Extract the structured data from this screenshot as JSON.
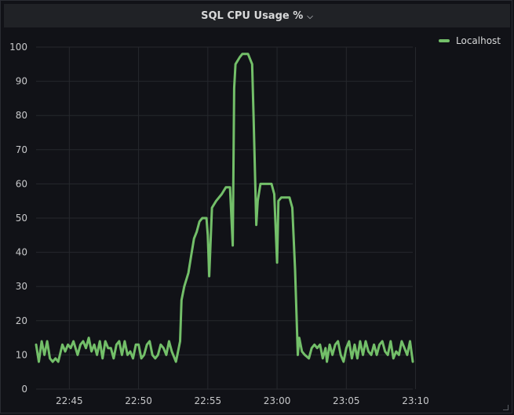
{
  "panel": {
    "title": "SQL CPU Usage %",
    "menu_icon": "chevron-down-icon"
  },
  "colors": {
    "background": "#111217",
    "grid": "#26282d",
    "series": "#73bf69",
    "text": "#c7c8ca"
  },
  "legend": {
    "items": [
      {
        "label": "Localhost",
        "color": "#73bf69"
      }
    ],
    "placement": "right"
  },
  "chart_data": {
    "type": "line",
    "x_unit": "minutes after 22:40",
    "xlim": [
      22.6,
      49.8
    ],
    "ylim": [
      0,
      100
    ],
    "x_ticks": [
      {
        "label": "22:45",
        "value": 25
      },
      {
        "label": "22:50",
        "value": 30
      },
      {
        "label": "22:55",
        "value": 35
      },
      {
        "label": "23:00",
        "value": 40
      },
      {
        "label": "23:05",
        "value": 45
      },
      {
        "label": "23:10",
        "value": 50
      }
    ],
    "y_ticks": [
      0,
      10,
      20,
      30,
      40,
      50,
      60,
      70,
      80,
      90,
      100
    ],
    "grid": true,
    "series": [
      {
        "name": "Localhost",
        "points": [
          [
            22.6,
            13
          ],
          [
            22.8,
            8
          ],
          [
            23.0,
            14
          ],
          [
            23.2,
            10
          ],
          [
            23.4,
            14
          ],
          [
            23.6,
            9
          ],
          [
            23.8,
            8
          ],
          [
            24.0,
            9
          ],
          [
            24.2,
            8
          ],
          [
            24.5,
            13
          ],
          [
            24.7,
            11
          ],
          [
            24.9,
            13
          ],
          [
            25.1,
            12
          ],
          [
            25.3,
            14
          ],
          [
            25.6,
            10
          ],
          [
            25.8,
            13
          ],
          [
            26.0,
            14
          ],
          [
            26.2,
            12
          ],
          [
            26.4,
            15
          ],
          [
            26.6,
            11
          ],
          [
            26.8,
            13
          ],
          [
            27.0,
            10
          ],
          [
            27.2,
            14
          ],
          [
            27.4,
            9
          ],
          [
            27.6,
            14
          ],
          [
            27.8,
            12
          ],
          [
            28.0,
            12
          ],
          [
            28.2,
            9
          ],
          [
            28.4,
            13
          ],
          [
            28.6,
            14
          ],
          [
            28.8,
            10
          ],
          [
            29.0,
            14
          ],
          [
            29.2,
            10
          ],
          [
            29.4,
            11
          ],
          [
            29.6,
            9
          ],
          [
            29.8,
            13
          ],
          [
            30.0,
            13
          ],
          [
            30.2,
            9
          ],
          [
            30.4,
            10
          ],
          [
            30.6,
            13
          ],
          [
            30.8,
            14
          ],
          [
            31.0,
            10
          ],
          [
            31.2,
            9
          ],
          [
            31.4,
            10
          ],
          [
            31.6,
            13
          ],
          [
            31.8,
            12
          ],
          [
            32.0,
            10
          ],
          [
            32.2,
            14
          ],
          [
            32.4,
            11
          ],
          [
            32.6,
            9
          ],
          [
            32.7,
            8
          ],
          [
            32.8,
            10
          ],
          [
            33.0,
            14
          ],
          [
            33.1,
            26
          ],
          [
            33.3,
            30
          ],
          [
            33.6,
            34
          ],
          [
            33.8,
            39
          ],
          [
            34.0,
            44
          ],
          [
            34.2,
            46
          ],
          [
            34.4,
            49
          ],
          [
            34.6,
            50
          ],
          [
            34.9,
            50
          ],
          [
            35.0,
            45
          ],
          [
            35.1,
            33
          ],
          [
            35.3,
            53
          ],
          [
            35.6,
            55
          ],
          [
            36.0,
            57
          ],
          [
            36.3,
            59
          ],
          [
            36.6,
            59
          ],
          [
            36.8,
            42
          ],
          [
            36.9,
            88
          ],
          [
            37.0,
            95
          ],
          [
            37.3,
            97
          ],
          [
            37.5,
            98
          ],
          [
            37.9,
            98
          ],
          [
            38.2,
            95
          ],
          [
            38.3,
            80
          ],
          [
            38.5,
            48
          ],
          [
            38.6,
            55
          ],
          [
            38.8,
            60
          ],
          [
            39.3,
            60
          ],
          [
            39.6,
            60
          ],
          [
            39.8,
            57
          ],
          [
            40.0,
            37
          ],
          [
            40.1,
            55
          ],
          [
            40.3,
            56
          ],
          [
            40.6,
            56
          ],
          [
            40.9,
            56
          ],
          [
            41.1,
            53
          ],
          [
            41.3,
            35
          ],
          [
            41.5,
            10
          ],
          [
            41.6,
            15
          ],
          [
            41.8,
            11
          ],
          [
            42.0,
            10
          ],
          [
            42.3,
            9
          ],
          [
            42.5,
            12
          ],
          [
            42.7,
            13
          ],
          [
            42.9,
            12
          ],
          [
            43.1,
            13
          ],
          [
            43.3,
            9
          ],
          [
            43.5,
            12
          ],
          [
            43.6,
            8
          ],
          [
            43.8,
            13
          ],
          [
            44.0,
            10
          ],
          [
            44.2,
            13
          ],
          [
            44.4,
            14
          ],
          [
            44.6,
            10
          ],
          [
            44.8,
            8
          ],
          [
            45.0,
            12
          ],
          [
            45.2,
            14
          ],
          [
            45.4,
            9
          ],
          [
            45.6,
            13
          ],
          [
            45.8,
            9
          ],
          [
            46.0,
            14
          ],
          [
            46.2,
            10
          ],
          [
            46.4,
            14
          ],
          [
            46.6,
            11
          ],
          [
            46.8,
            10
          ],
          [
            47.0,
            13
          ],
          [
            47.2,
            10
          ],
          [
            47.4,
            13
          ],
          [
            47.6,
            14
          ],
          [
            47.8,
            11
          ],
          [
            48.0,
            10
          ],
          [
            48.2,
            14
          ],
          [
            48.4,
            9
          ],
          [
            48.6,
            11
          ],
          [
            48.8,
            10
          ],
          [
            49.0,
            14
          ],
          [
            49.2,
            12
          ],
          [
            49.4,
            10
          ],
          [
            49.6,
            14
          ],
          [
            49.8,
            8
          ]
        ]
      }
    ]
  }
}
